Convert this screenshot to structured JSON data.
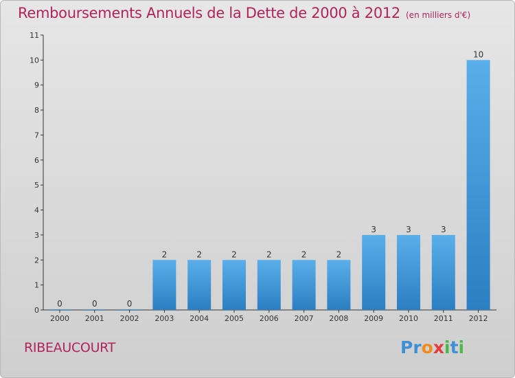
{
  "header": {
    "title": "Remboursements Annuels de la Dette de 2000 à 2012",
    "subtitle": "(en milliers d'€)"
  },
  "footer": {
    "commune": "RIBEAUCOURT",
    "logo_letters": [
      {
        "ch": "P",
        "color": "#3d8fd6"
      },
      {
        "ch": "r",
        "color": "#3d8fd6"
      },
      {
        "ch": "o",
        "color": "#f08a1c"
      },
      {
        "ch": "x",
        "color": "#e23c3c"
      },
      {
        "ch": "i",
        "color": "#4cb848"
      },
      {
        "ch": "t",
        "color": "#3d8fd6"
      },
      {
        "ch": "i",
        "color": "#4cb848"
      }
    ]
  },
  "colors": {
    "bar_light": "#5aaee9",
    "bar_dark": "#2b7fc2",
    "title": "#b0245a",
    "axis": "#333333"
  },
  "chart_data": {
    "type": "bar",
    "categories": [
      "2000",
      "2001",
      "2002",
      "2003",
      "2004",
      "2005",
      "2006",
      "2007",
      "2008",
      "2009",
      "2010",
      "2011",
      "2012"
    ],
    "values": [
      0,
      0,
      0,
      2,
      2,
      2,
      2,
      2,
      2,
      3,
      3,
      3,
      10
    ],
    "data_labels": [
      "0",
      "0",
      "0",
      "2",
      "2",
      "2",
      "2",
      "2",
      "2",
      "3",
      "3",
      "3",
      "10"
    ],
    "yticks": [
      0,
      1,
      2,
      3,
      4,
      5,
      6,
      7,
      8,
      9,
      10,
      11
    ],
    "ylim": [
      0,
      11
    ],
    "grid": false,
    "legend": "none"
  }
}
